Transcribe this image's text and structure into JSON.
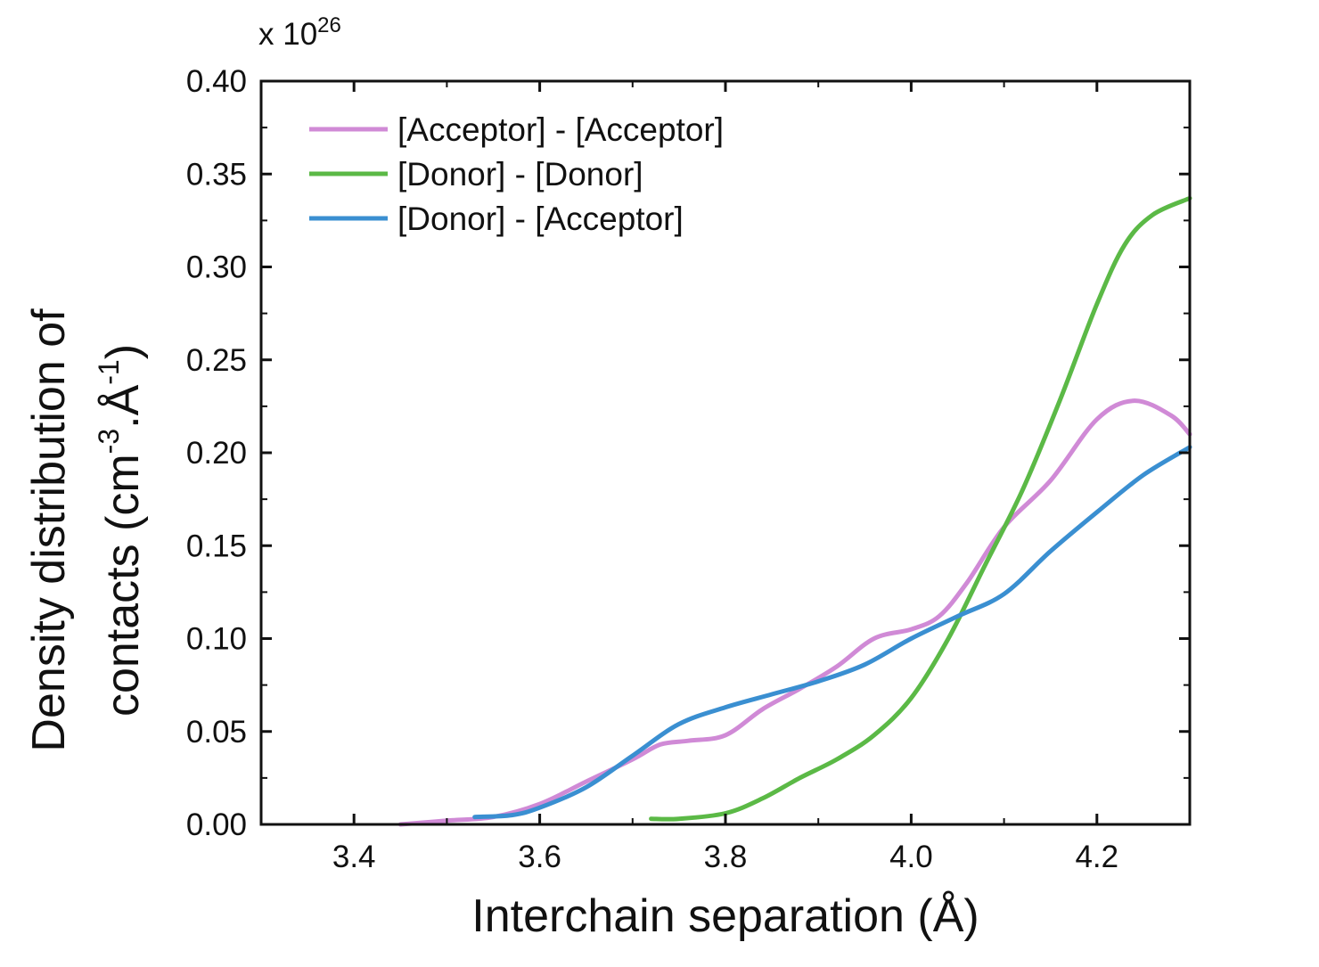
{
  "chart_data": {
    "type": "line",
    "title": "",
    "xlabel": "Interchain separation (Å)",
    "ylabel_line1": "Density distribution of",
    "ylabel_line2_prefix": "contacts (cm",
    "ylabel_line2_sup1": "-3",
    "ylabel_line2_mid": ".Å",
    "ylabel_line2_sup2": "-1",
    "ylabel_line2_suffix": ")",
    "multiplier_prefix": "x 10",
    "multiplier_exponent": "26",
    "xlim": [
      3.3,
      4.3
    ],
    "ylim": [
      0,
      0.4
    ],
    "xticks": [
      3.4,
      3.6,
      3.8,
      4.0,
      4.2
    ],
    "xtick_labels": [
      "3.4",
      "3.6",
      "3.8",
      "4.0",
      "4.2"
    ],
    "yticks": [
      0,
      0.05,
      0.1,
      0.15,
      0.2,
      0.25,
      0.3,
      0.35,
      0.4
    ],
    "ytick_labels": [
      "0.00",
      "0.05",
      "0.10",
      "0.15",
      "0.20",
      "0.25",
      "0.30",
      "0.35",
      "0.40"
    ],
    "grid": false,
    "legend_position": "top-left",
    "series": [
      {
        "name": "[Acceptor] - [Acceptor]",
        "color": "#d08ad6",
        "x": [
          3.45,
          3.5,
          3.55,
          3.6,
          3.65,
          3.7,
          3.73,
          3.76,
          3.8,
          3.84,
          3.88,
          3.92,
          3.96,
          4.0,
          4.03,
          4.06,
          4.1,
          4.15,
          4.2,
          4.24,
          4.28,
          4.3
        ],
        "y": [
          0.0,
          0.002,
          0.004,
          0.011,
          0.023,
          0.035,
          0.043,
          0.045,
          0.048,
          0.062,
          0.073,
          0.085,
          0.1,
          0.105,
          0.112,
          0.13,
          0.16,
          0.185,
          0.218,
          0.228,
          0.22,
          0.21
        ]
      },
      {
        "name": "[Donor] - [Donor]",
        "color": "#5bb946",
        "x": [
          3.72,
          3.75,
          3.8,
          3.84,
          3.88,
          3.92,
          3.96,
          4.0,
          4.04,
          4.08,
          4.12,
          4.16,
          4.2,
          4.23,
          4.26,
          4.3
        ],
        "y": [
          0.003,
          0.003,
          0.006,
          0.014,
          0.025,
          0.035,
          0.048,
          0.068,
          0.1,
          0.14,
          0.18,
          0.228,
          0.28,
          0.312,
          0.328,
          0.337
        ]
      },
      {
        "name": "[Donor] - [Acceptor]",
        "color": "#3a8fd1",
        "x": [
          3.53,
          3.57,
          3.6,
          3.65,
          3.7,
          3.75,
          3.8,
          3.85,
          3.9,
          3.95,
          4.0,
          4.05,
          4.1,
          4.15,
          4.2,
          4.25,
          4.3
        ],
        "y": [
          0.004,
          0.005,
          0.009,
          0.02,
          0.037,
          0.054,
          0.063,
          0.07,
          0.077,
          0.086,
          0.1,
          0.112,
          0.124,
          0.147,
          0.168,
          0.188,
          0.203
        ]
      }
    ]
  }
}
